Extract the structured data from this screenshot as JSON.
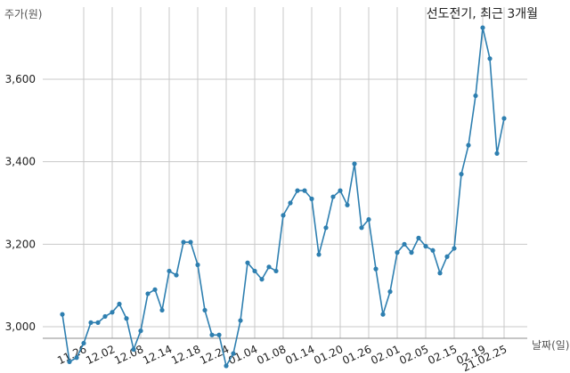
{
  "chart_data": {
    "type": "line",
    "title": "선도전기, 최근 3개월",
    "ylabel": "주가(원)",
    "xlabel": "날짜(일)",
    "ylim": [
      2890,
      3735
    ],
    "yticks": [
      3000,
      3200,
      3400,
      3600
    ],
    "ytick_labels": [
      "3,000",
      "3,200",
      "3,400",
      "3,600"
    ],
    "grid": true,
    "x_tick_labels": [
      "11.26",
      "12.02",
      "12.08",
      "12.14",
      "12.18",
      "12.24",
      "01.04",
      "01.08",
      "01.14",
      "01.20",
      "01.26",
      "02.01",
      "02.05",
      "02.15",
      "02.19",
      "21.02.25"
    ],
    "x_tick_index": [
      3,
      7,
      11,
      15,
      19,
      23,
      27,
      31,
      35,
      39,
      43,
      47,
      51,
      55,
      59,
      62
    ],
    "colors": {
      "line": "#2e7fb0",
      "marker": "#2e7fb0"
    },
    "series": [
      {
        "values": [
          3030,
          2915,
          2925,
          2960,
          3010,
          3010,
          3025,
          3035,
          3055,
          3020,
          2945,
          2990,
          3080,
          3090,
          3040,
          3135,
          3125,
          3205,
          3205,
          3150,
          3040,
          2980,
          2980,
          2905,
          2935,
          3015,
          3155,
          3135,
          3115,
          3145,
          3135,
          3270,
          3300,
          3330,
          3330,
          3310,
          3175,
          3240,
          3315,
          3330,
          3295,
          3395,
          3240,
          3260,
          3140,
          3030,
          3085,
          3180,
          3200,
          3180,
          3215,
          3195,
          3185,
          3130,
          3170,
          3190,
          3370,
          3440,
          3560,
          3725,
          3650,
          3420,
          3505
        ]
      }
    ]
  }
}
